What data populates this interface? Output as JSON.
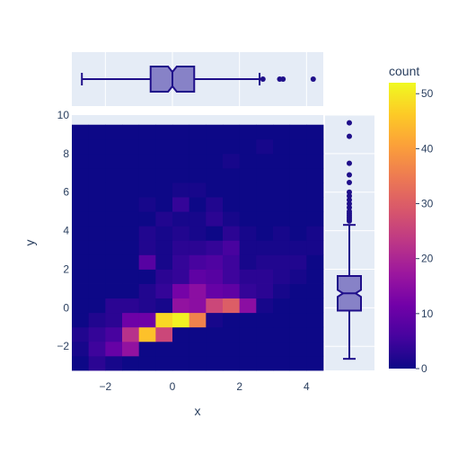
{
  "chart_data": {
    "type": "heatmap",
    "subtype": "density-heatmap-with-marginal-boxplots",
    "title": "",
    "xlabel": "x",
    "ylabel": "y",
    "xlim": [
      -3,
      4.5
    ],
    "ylim": [
      -3.25,
      10
    ],
    "x_ticks": [
      -2,
      0,
      2,
      4
    ],
    "y_ticks": [
      -2,
      0,
      2,
      4,
      6,
      8,
      10
    ],
    "x_bins": [
      -3.0,
      -2.5,
      -2.0,
      -1.5,
      -1.0,
      -0.5,
      0.0,
      0.5,
      1.0,
      1.5,
      2.0,
      2.5,
      3.0,
      3.5,
      4.0
    ],
    "x_bin_width": 0.5,
    "y_bins": [
      -3.25,
      -2.5,
      -1.75,
      -1.0,
      -0.25,
      0.5,
      1.25,
      2.0,
      2.75,
      3.5,
      4.25,
      5.0,
      5.75,
      6.5,
      7.25,
      8.0,
      8.75,
      9.5
    ],
    "y_bin_width": 0.75,
    "counts": [
      [
        0,
        3,
        1,
        0,
        0,
        0,
        0,
        0,
        0,
        0,
        0,
        0,
        0,
        0,
        0
      ],
      [
        1,
        5,
        10,
        16,
        0,
        0,
        0,
        0,
        0,
        0,
        0,
        0,
        0,
        0,
        0
      ],
      [
        2,
        4,
        6,
        22,
        45,
        26,
        0,
        0,
        0,
        0,
        0,
        0,
        0,
        0,
        0
      ],
      [
        0,
        2,
        3,
        11,
        11,
        48,
        51,
        36,
        1,
        0,
        0,
        0,
        0,
        0,
        0
      ],
      [
        0,
        0,
        3,
        3,
        2,
        1,
        16,
        15,
        26,
        30,
        15,
        1,
        0,
        0,
        0
      ],
      [
        0,
        0,
        0,
        0,
        2,
        4,
        12,
        15,
        10,
        9,
        4,
        3,
        1,
        0,
        0
      ],
      [
        0,
        0,
        0,
        0,
        0,
        3,
        4,
        9,
        8,
        5,
        3,
        3,
        2,
        1,
        0
      ],
      [
        0,
        0,
        0,
        0,
        8,
        1,
        4,
        6,
        7,
        5,
        1,
        2,
        2,
        2,
        0
      ],
      [
        0,
        0,
        0,
        0,
        2,
        1,
        3,
        3,
        4,
        6,
        1,
        1,
        1,
        1,
        1
      ],
      [
        0,
        0,
        0,
        0,
        2,
        1,
        2,
        1,
        0,
        3,
        1,
        0,
        1,
        0,
        1
      ],
      [
        0,
        0,
        0,
        0,
        0,
        2,
        1,
        1,
        3,
        1,
        0,
        0,
        0,
        0,
        0
      ],
      [
        0,
        0,
        0,
        0,
        1,
        0,
        4,
        0,
        2,
        0,
        0,
        0,
        0,
        0,
        0
      ],
      [
        0,
        0,
        0,
        0,
        0,
        0,
        1,
        1,
        0,
        0,
        0,
        0,
        0,
        0,
        0
      ],
      [
        0,
        0,
        0,
        0,
        0,
        0,
        0,
        0,
        0,
        0,
        0,
        0,
        0,
        0,
        0
      ],
      [
        0,
        0,
        0,
        0,
        0,
        0,
        0,
        0,
        0,
        1,
        0,
        0,
        0,
        0,
        0
      ],
      [
        0,
        0,
        0,
        0,
        0,
        0,
        0,
        0,
        0,
        0,
        0,
        1,
        0,
        0,
        0
      ],
      [
        0,
        0,
        0,
        0,
        0,
        0,
        0,
        0,
        0,
        0,
        0,
        0,
        0,
        0,
        0
      ]
    ],
    "colorbar": {
      "title": "count",
      "range": [
        0,
        52
      ],
      "ticks": [
        0,
        10,
        20,
        30,
        40,
        50
      ],
      "colorscale": [
        "#0d0887",
        "#46039f",
        "#7201a8",
        "#9c179e",
        "#bd3786",
        "#d8576b",
        "#ed7953",
        "#fb9f3a",
        "#fdca26",
        "#f0f921"
      ]
    },
    "marginal_x_box": {
      "orientation": "horizontal",
      "notched": true,
      "lower_fence": -2.7,
      "q1": -0.65,
      "median": 0.0,
      "q3": 0.65,
      "upper_fence": 2.6,
      "notch_half_width": 0.13,
      "outliers": [
        2.7,
        3.2,
        3.3,
        4.2
      ]
    },
    "marginal_y_box": {
      "orientation": "vertical",
      "notched": true,
      "lower_fence": -2.65,
      "q1": -0.15,
      "median": 0.75,
      "q3": 1.65,
      "upper_fence": 4.3,
      "notch_half_width": 0.18,
      "outliers": [
        4.5,
        4.6,
        4.7,
        4.8,
        4.9,
        5.0,
        5.2,
        5.4,
        5.6,
        5.8,
        6.0,
        6.5,
        6.9,
        7.5,
        8.9,
        9.6
      ]
    },
    "colors": {
      "box_line": "#1f0f8a",
      "box_fill": "#8782c7",
      "plot_bg": "#e5ecf6",
      "grid": "#ffffff",
      "text": "#2a3f5f"
    },
    "legend": "none"
  }
}
